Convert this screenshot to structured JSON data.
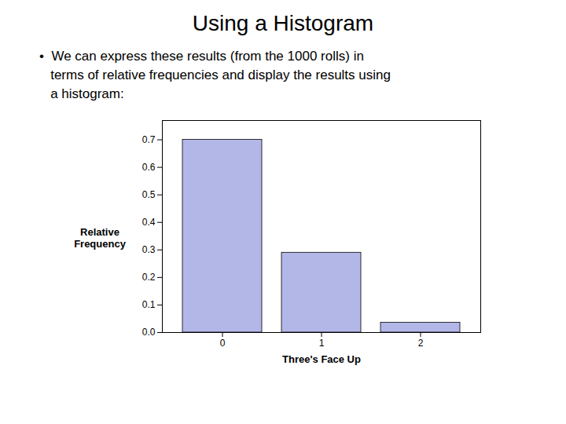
{
  "chart_data": {
    "type": "bar",
    "title": "Using a Histogram",
    "annotations": [
      "•  We can express these results (from the 1000 rolls) in",
      "   terms of relative frequencies and display the results using",
      "   a histogram:"
    ],
    "categories": [
      "0",
      "1",
      "2"
    ],
    "values": [
      0.7,
      0.29,
      0.036
    ],
    "color": "#b3b7e8",
    "xlabel": "Three's Face Up",
    "ylabel": "Relative\nFrequency",
    "ylim": [
      0.0,
      0.77
    ],
    "yticks": [
      {
        "value": 0.0,
        "label": "0.0"
      },
      0.1,
      0.2,
      0.3,
      0.4,
      0.5,
      0.6,
      0.7
    ],
    "grid": false
  }
}
